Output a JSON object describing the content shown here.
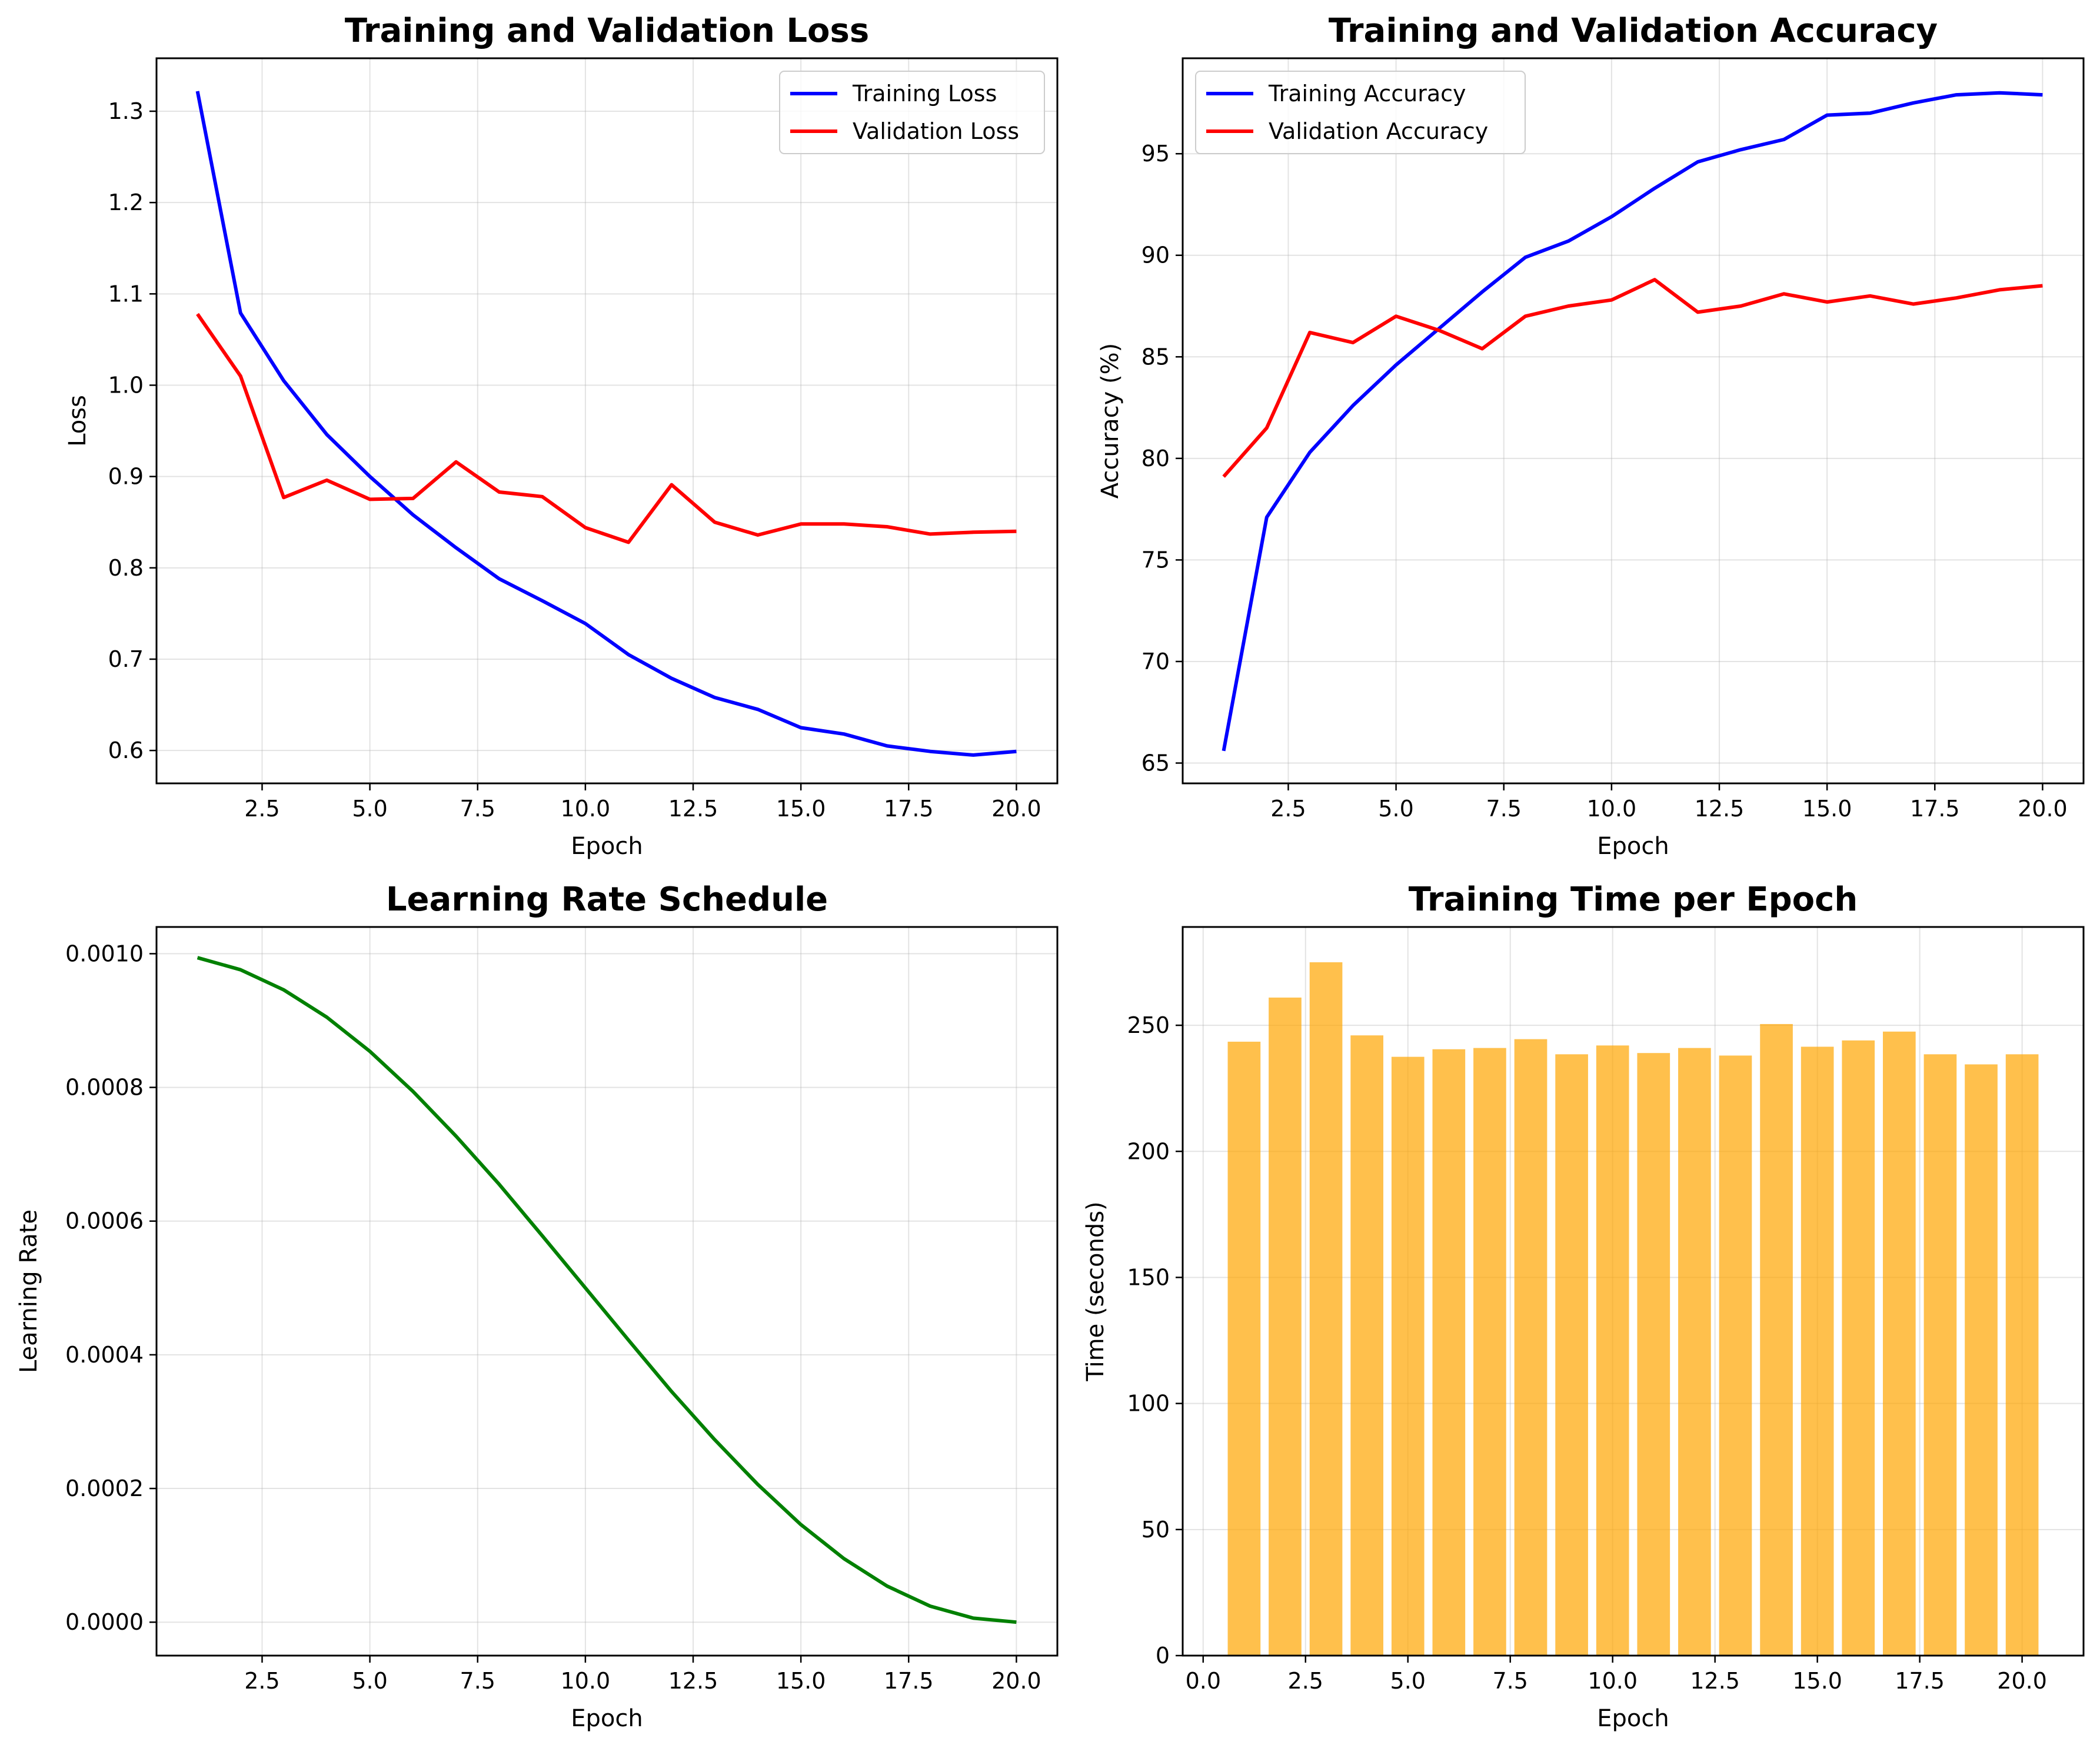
{
  "chart_data": [
    {
      "id": "loss",
      "type": "line",
      "title": "Training and Validation Loss",
      "xlabel": "Epoch",
      "ylabel": "Loss",
      "xlim": [
        0.05,
        20.95
      ],
      "ylim": [
        0.564,
        1.358
      ],
      "xticks": [
        2.5,
        5.0,
        7.5,
        10.0,
        12.5,
        15.0,
        17.5,
        20.0
      ],
      "xtick_labels": [
        "2.5",
        "5.0",
        "7.5",
        "10.0",
        "12.5",
        "15.0",
        "17.5",
        "20.0"
      ],
      "yticks": [
        0.6,
        0.7,
        0.8,
        0.9,
        1.0,
        1.1,
        1.2,
        1.3
      ],
      "ytick_labels": [
        "0.6",
        "0.7",
        "0.8",
        "0.9",
        "1.0",
        "1.1",
        "1.2",
        "1.3"
      ],
      "grid": true,
      "legend": "top-right",
      "x": [
        1,
        2,
        3,
        4,
        5,
        6,
        7,
        8,
        9,
        10,
        11,
        12,
        13,
        14,
        15,
        16,
        17,
        18,
        19,
        20
      ],
      "series": [
        {
          "name": "Training Loss",
          "color": "#0000ff",
          "values": [
            1.322,
            1.079,
            1.005,
            0.946,
            0.9,
            0.858,
            0.822,
            0.788,
            0.764,
            0.739,
            0.705,
            0.679,
            0.658,
            0.645,
            0.625,
            0.618,
            0.605,
            0.599,
            0.595,
            0.599
          ]
        },
        {
          "name": "Validation Loss",
          "color": "#ff0000",
          "values": [
            1.078,
            1.01,
            0.877,
            0.896,
            0.875,
            0.876,
            0.916,
            0.883,
            0.878,
            0.844,
            0.828,
            0.891,
            0.85,
            0.836,
            0.848,
            0.848,
            0.845,
            0.837,
            0.839,
            0.84
          ]
        }
      ]
    },
    {
      "id": "accuracy",
      "type": "line",
      "title": "Training and Validation Accuracy",
      "xlabel": "Epoch",
      "ylabel": "Accuracy (%)",
      "xlim": [
        0.05,
        20.95
      ],
      "ylim": [
        64.0,
        99.7
      ],
      "xticks": [
        2.5,
        5.0,
        7.5,
        10.0,
        12.5,
        15.0,
        17.5,
        20.0
      ],
      "xtick_labels": [
        "2.5",
        "5.0",
        "7.5",
        "10.0",
        "12.5",
        "15.0",
        "17.5",
        "20.0"
      ],
      "yticks": [
        65,
        70,
        75,
        80,
        85,
        90,
        95
      ],
      "ytick_labels": [
        "65",
        "70",
        "75",
        "80",
        "85",
        "90",
        "95"
      ],
      "grid": true,
      "legend": "top-left",
      "x": [
        1,
        2,
        3,
        4,
        5,
        6,
        7,
        8,
        9,
        10,
        11,
        12,
        13,
        14,
        15,
        16,
        17,
        18,
        19,
        20
      ],
      "series": [
        {
          "name": "Training Accuracy",
          "color": "#0000ff",
          "values": [
            65.6,
            77.1,
            80.3,
            82.6,
            84.6,
            86.4,
            88.2,
            89.9,
            90.7,
            91.9,
            93.3,
            94.6,
            95.2,
            95.7,
            96.9,
            97.0,
            97.5,
            97.9,
            98.0,
            97.9
          ]
        },
        {
          "name": "Validation Accuracy",
          "color": "#ff0000",
          "values": [
            79.1,
            81.5,
            86.2,
            85.7,
            87.0,
            86.3,
            85.4,
            87.0,
            87.5,
            87.8,
            88.8,
            87.2,
            87.5,
            88.1,
            87.7,
            88.0,
            87.6,
            87.9,
            88.3,
            88.5
          ]
        }
      ]
    },
    {
      "id": "lr",
      "type": "line",
      "title": "Learning Rate Schedule",
      "xlabel": "Epoch",
      "ylabel": "Learning Rate",
      "xlim": [
        0.05,
        20.95
      ],
      "ylim": [
        -5e-05,
        0.00104
      ],
      "xticks": [
        2.5,
        5.0,
        7.5,
        10.0,
        12.5,
        15.0,
        17.5,
        20.0
      ],
      "xtick_labels": [
        "2.5",
        "5.0",
        "7.5",
        "10.0",
        "12.5",
        "15.0",
        "17.5",
        "20.0"
      ],
      "yticks": [
        0.0,
        0.0002,
        0.0004,
        0.0006,
        0.0008,
        0.001
      ],
      "ytick_labels": [
        "0.0000",
        "0.0002",
        "0.0004",
        "0.0006",
        "0.0008",
        "0.0010"
      ],
      "grid": true,
      "legend": "none",
      "x": [
        1,
        2,
        3,
        4,
        5,
        6,
        7,
        8,
        9,
        10,
        11,
        12,
        13,
        14,
        15,
        16,
        17,
        18,
        19,
        20
      ],
      "series": [
        {
          "color": "#008000",
          "values": [
            0.000994,
            0.000976,
            0.000946,
            0.000905,
            0.000854,
            0.000794,
            0.000727,
            0.000655,
            0.000578,
            0.0005,
            0.000422,
            0.000345,
            0.000273,
            0.000206,
            0.000146,
            9.5e-05,
            5.4e-05,
            2.4e-05,
            6e-06,
            0.0
          ]
        }
      ]
    },
    {
      "id": "time",
      "type": "bar",
      "title": "Training Time per Epoch",
      "xlabel": "Epoch",
      "ylabel": "Time (seconds)",
      "xlim": [
        -0.5,
        21.5
      ],
      "ylim": [
        0,
        289
      ],
      "xticks": [
        0.0,
        2.5,
        5.0,
        7.5,
        10.0,
        12.5,
        15.0,
        17.5,
        20.0
      ],
      "xtick_labels": [
        "0.0",
        "2.5",
        "5.0",
        "7.5",
        "10.0",
        "12.5",
        "15.0",
        "17.5",
        "20.0"
      ],
      "yticks": [
        0,
        50,
        100,
        150,
        200,
        250
      ],
      "ytick_labels": [
        "0",
        "50",
        "100",
        "150",
        "200",
        "250"
      ],
      "grid": true,
      "legend": "none",
      "bar_color": "#ffa500",
      "bar_opacity": 0.7,
      "x": [
        1,
        2,
        3,
        4,
        5,
        6,
        7,
        8,
        9,
        10,
        11,
        12,
        13,
        14,
        15,
        16,
        17,
        18,
        19,
        20
      ],
      "values": [
        243.5,
        261.0,
        275.0,
        246.0,
        237.5,
        240.5,
        241.0,
        244.5,
        238.5,
        242.0,
        239.0,
        241.0,
        238.0,
        250.5,
        241.5,
        244.0,
        247.5,
        238.5,
        234.5,
        238.5
      ]
    }
  ]
}
